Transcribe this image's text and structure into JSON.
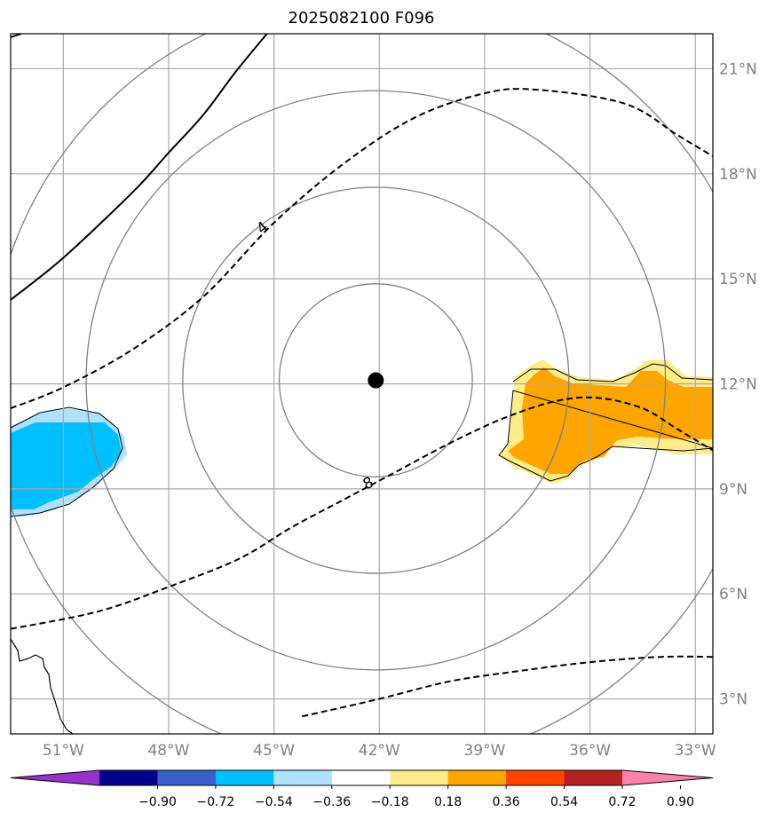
{
  "chart_data": {
    "type": "map",
    "title": "2025082100 F096",
    "projection": "plate-carree",
    "lon_range": [
      -52.5,
      -32.5
    ],
    "lat_range": [
      2.0,
      22.0
    ],
    "lon_ticks": [
      -51,
      -48,
      -45,
      -42,
      -39,
      -36,
      -33
    ],
    "lat_ticks": [
      3,
      6,
      9,
      12,
      15,
      18,
      21
    ],
    "lon_tick_labels": [
      "51°W",
      "48°W",
      "45°W",
      "42°W",
      "39°W",
      "36°W",
      "33°W"
    ],
    "lat_tick_labels": [
      "3°N",
      "6°N",
      "9°N",
      "12°N",
      "15°N",
      "18°N",
      "21°N"
    ],
    "center": {
      "lon": -42.1,
      "lat": 12.1,
      "marker": "filled-circle"
    },
    "range_rings_deg": [
      2.75,
      5.5,
      8.25,
      11.0
    ],
    "dashed_contours": [
      {
        "label": "4",
        "points": [
          [
            -52.5,
            11.3
          ],
          [
            -51,
            11.9
          ],
          [
            -49,
            13.0
          ],
          [
            -47,
            14.5
          ],
          [
            -45,
            16.6
          ],
          [
            -43,
            18.3
          ],
          [
            -41,
            19.6
          ],
          [
            -39,
            20.3
          ],
          [
            -37.5,
            20.4
          ],
          [
            -35,
            20.0
          ],
          [
            -33.5,
            19.1
          ],
          [
            -32.5,
            18.5
          ]
        ]
      },
      {
        "label": "8",
        "points": [
          [
            -52.5,
            5.0
          ],
          [
            -50,
            5.5
          ],
          [
            -48,
            6.2
          ],
          [
            -46,
            7.0
          ],
          [
            -44.5,
            7.9
          ],
          [
            -43,
            8.7
          ],
          [
            -41.5,
            9.5
          ],
          [
            -40,
            10.3
          ],
          [
            -38.5,
            11.0
          ],
          [
            -37,
            11.5
          ],
          [
            -35.8,
            11.6
          ],
          [
            -34.5,
            11.3
          ],
          [
            -33.5,
            10.7
          ],
          [
            -32.5,
            10.1
          ]
        ]
      },
      {
        "label": "",
        "points": [
          [
            -44.2,
            2.5
          ],
          [
            -42,
            3.0
          ],
          [
            -40,
            3.5
          ],
          [
            -38,
            3.8
          ],
          [
            -36,
            4.05
          ],
          [
            -34,
            4.2
          ],
          [
            -32.5,
            4.2
          ]
        ]
      }
    ],
    "solid_contours": [
      {
        "label": "",
        "points": [
          [
            -52.5,
            14.4
          ],
          [
            -51,
            15.6
          ],
          [
            -49,
            17.5
          ],
          [
            -48,
            18.6
          ],
          [
            -47,
            19.7
          ],
          [
            -46.1,
            20.9
          ],
          [
            -45.2,
            22.0
          ]
        ]
      },
      {
        "label": "",
        "points": [
          [
            -52.5,
            21.9
          ],
          [
            -52.2,
            22.0
          ]
        ]
      }
    ],
    "shaded_regions": [
      {
        "name": "negative-anomaly-west",
        "levels": [
          -0.54,
          -0.36
        ],
        "lon_extent": [
          -52.5,
          -49.7
        ],
        "lat_extent": [
          8.8,
          11.3
        ]
      },
      {
        "name": "positive-anomaly-east",
        "levels": [
          0.18,
          0.36
        ],
        "lon_extent": [
          -38.3,
          -32.5
        ],
        "lat_extent": [
          9.3,
          12.7
        ]
      }
    ],
    "colorbar": {
      "colors": [
        "#9932cc",
        "#00008b",
        "#3a5fcd",
        "#00bfff",
        "#b0e2ff",
        "#ffffff",
        "#ffec8b",
        "#ffa500",
        "#ff4500",
        "#b22222",
        "#ff82ab"
      ],
      "tick_labels": [
        "−0.90",
        "−0.72",
        "−0.54",
        "−0.36",
        "−0.18",
        "0.18",
        "0.36",
        "0.54",
        "0.72",
        "0.90"
      ],
      "extend": "both"
    }
  }
}
